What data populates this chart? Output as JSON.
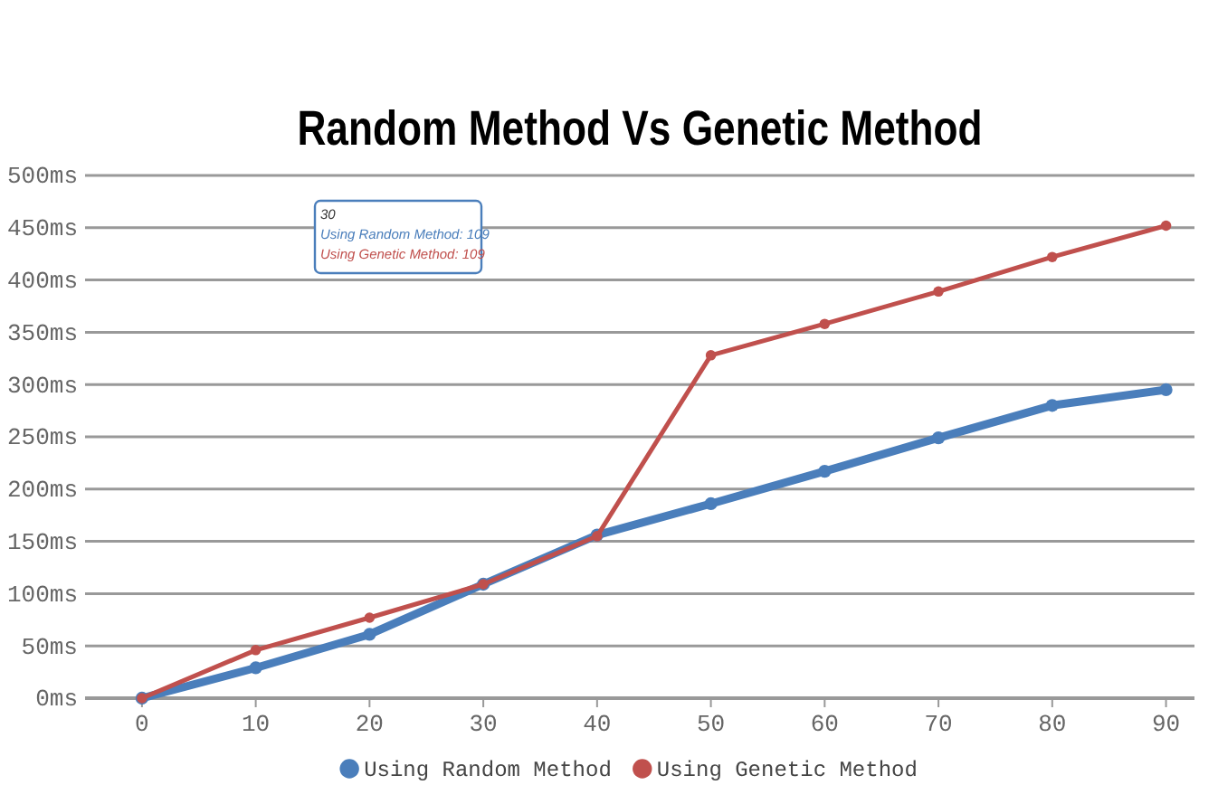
{
  "chart_data": {
    "type": "line",
    "title": "Random Method Vs Genetic Method",
    "x": [
      0,
      10,
      20,
      30,
      40,
      50,
      60,
      70,
      80,
      90
    ],
    "series": [
      {
        "name": "Using Random Method",
        "color": "#4a7ebb",
        "values": [
          0,
          29,
          61,
          109,
          156,
          186,
          217,
          249,
          280,
          295
        ]
      },
      {
        "name": "Using Genetic Method",
        "color": "#c0504d",
        "values": [
          0,
          46,
          77,
          109,
          155,
          328,
          358,
          389,
          422,
          452
        ]
      }
    ],
    "xlim": [
      -5,
      92.5
    ],
    "xticks": [
      0,
      10,
      20,
      30,
      40,
      50,
      60,
      70,
      80,
      90
    ],
    "ylim": [
      0,
      500
    ],
    "yticks": [
      {
        "value": 0,
        "label": "0ms"
      },
      {
        "value": 50,
        "label": "50ms"
      },
      {
        "value": 100,
        "label": "100ms"
      },
      {
        "value": 150,
        "label": "150ms"
      },
      {
        "value": 200,
        "label": "200ms"
      },
      {
        "value": 250,
        "label": "250ms"
      },
      {
        "value": 300,
        "label": "300ms"
      },
      {
        "value": 350,
        "label": "350ms"
      },
      {
        "value": 400,
        "label": "400ms"
      },
      {
        "value": 450,
        "label": "450ms"
      },
      {
        "value": 500,
        "label": "500ms"
      }
    ],
    "annotations": [
      "30",
      "Using Random Method: 109",
      "Using Genetic Method: 109"
    ],
    "grid": "y",
    "legend": "bottom",
    "marker": "circle",
    "line_style": "solid"
  }
}
